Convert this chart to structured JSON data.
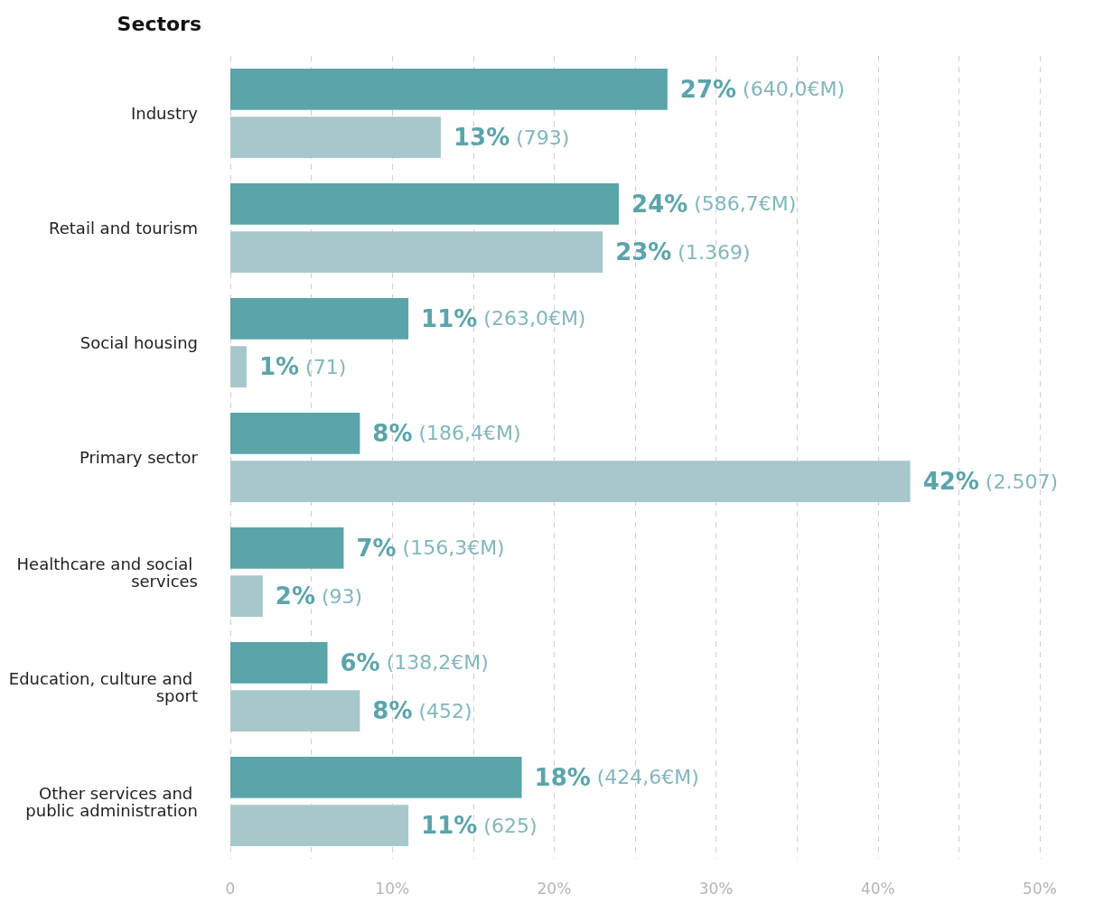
{
  "chart_data": {
    "type": "bar",
    "orientation": "horizontal",
    "title": "Sectors",
    "categories": [
      "Industry",
      "Retail and tourism",
      "Social housing",
      "Primary sector",
      "Healthcare and social services",
      "Education, culture and sport",
      "Other services and public administration"
    ],
    "series": [
      {
        "color": "#5ba4aa",
        "values": [
          27,
          24,
          11,
          8,
          7,
          6,
          18
        ],
        "value_labels": [
          "27% (640,0€M)",
          "24% (586,7€M)",
          "11% (263,0€M)",
          "8% (186,4€M)",
          "7% (156,3€M)",
          "6% (138,2€M)",
          "18% (424,6€M)"
        ]
      },
      {
        "color": "#a7c8cb",
        "values": [
          13,
          23,
          1,
          42,
          2,
          8,
          11
        ],
        "value_labels": [
          "13% (793)",
          "23% (1.369)",
          "1% (71)",
          "42% (2.507)",
          "2% (93)",
          "8% (452)",
          "11% (625)"
        ]
      }
    ],
    "xlim": [
      0,
      50
    ],
    "xticks": [
      {
        "value": 0,
        "label": "0"
      },
      {
        "value": 5,
        "label": null
      },
      {
        "value": 10,
        "label": "10%"
      },
      {
        "value": 15,
        "label": null
      },
      {
        "value": 20,
        "label": "20%"
      },
      {
        "value": 25,
        "label": null
      },
      {
        "value": 30,
        "label": "30%"
      },
      {
        "value": 35,
        "label": null
      },
      {
        "value": 40,
        "label": "40%"
      },
      {
        "value": 45,
        "label": null
      },
      {
        "value": 50,
        "label": "50%"
      }
    ],
    "grid": true
  }
}
